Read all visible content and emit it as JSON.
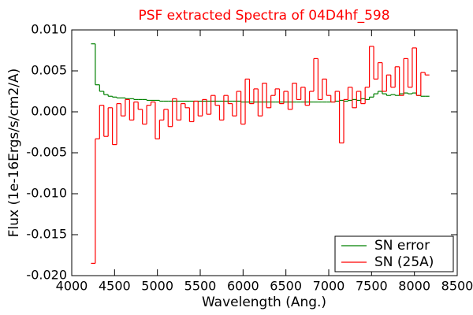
{
  "chart_data": {
    "type": "step",
    "title": "PSF extracted Spectra of 04D4hf_598",
    "xlabel": "Wavelength (Ang.)",
    "ylabel": "Flux (1e-16Ergs/s/cm2/A)",
    "xlim": [
      4000,
      8500
    ],
    "ylim": [
      -0.02,
      0.01
    ],
    "xticks": [
      4000,
      4500,
      5000,
      5500,
      6000,
      6500,
      7000,
      7500,
      8000,
      8500
    ],
    "yticks": [
      {
        "value": -0.02,
        "label": "-0.020"
      },
      -0.015,
      {
        "value": -0.01,
        "label": "-0.010"
      },
      -0.005,
      {
        "value": 0,
        "label": "0.000"
      },
      0.005,
      {
        "value": 0.01,
        "label": "0.010"
      }
    ],
    "legend": "lower right",
    "x": [
      4250,
      4300,
      4350,
      4400,
      4450,
      4500,
      4550,
      4600,
      4650,
      4700,
      4750,
      4800,
      4850,
      4900,
      4950,
      5000,
      5050,
      5100,
      5150,
      5200,
      5250,
      5300,
      5350,
      5400,
      5450,
      5500,
      5550,
      5600,
      5650,
      5700,
      5750,
      5800,
      5850,
      5900,
      5950,
      6000,
      6050,
      6100,
      6150,
      6200,
      6250,
      6300,
      6350,
      6400,
      6450,
      6500,
      6550,
      6600,
      6650,
      6700,
      6750,
      6800,
      6850,
      6900,
      6950,
      7000,
      7050,
      7100,
      7150,
      7200,
      7250,
      7300,
      7350,
      7400,
      7450,
      7500,
      7550,
      7600,
      7650,
      7700,
      7750,
      7800,
      7850,
      7900,
      7950,
      8000,
      8050,
      8100,
      8150
    ],
    "series": [
      {
        "name": "SN error",
        "color": "#008000",
        "values": [
          0.0083,
          0.0033,
          0.0025,
          0.0021,
          0.0019,
          0.0018,
          0.0017,
          0.0017,
          0.0016,
          0.0016,
          0.0015,
          0.0015,
          0.0015,
          0.0014,
          0.0014,
          0.0014,
          0.0013,
          0.0013,
          0.0013,
          0.0013,
          0.0013,
          0.0013,
          0.0013,
          0.0013,
          0.0013,
          0.0013,
          0.0013,
          0.0013,
          0.0013,
          0.0013,
          0.0013,
          0.0013,
          0.0013,
          0.0013,
          0.0013,
          0.0012,
          0.0012,
          0.0012,
          0.0012,
          0.0012,
          0.0012,
          0.0012,
          0.0012,
          0.0012,
          0.0012,
          0.0012,
          0.0012,
          0.0012,
          0.0012,
          0.0012,
          0.0012,
          0.0012,
          0.0012,
          0.0012,
          0.0012,
          0.0012,
          0.0012,
          0.0013,
          0.0014,
          0.0013,
          0.0014,
          0.0015,
          0.0014,
          0.0016,
          0.0015,
          0.0018,
          0.0022,
          0.0025,
          0.0022,
          0.002,
          0.0021,
          0.002,
          0.0022,
          0.0023,
          0.0022,
          0.0023,
          0.002,
          0.0019,
          0.0019
        ]
      },
      {
        "name": "SN (25A)",
        "color": "#ff0000",
        "values": [
          -0.0185,
          -0.0033,
          0.0008,
          -0.003,
          0.0005,
          -0.004,
          0.001,
          -0.0005,
          0.0015,
          -0.001,
          0.0012,
          0.0003,
          -0.0015,
          0.0008,
          0.0012,
          -0.0033,
          -0.001,
          0.0003,
          -0.0018,
          0.0016,
          -0.001,
          0.001,
          0.0005,
          -0.0012,
          0.0013,
          -0.0005,
          0.0015,
          -0.0003,
          0.002,
          0.0008,
          -0.001,
          0.002,
          0.001,
          -0.0005,
          0.0025,
          -0.0015,
          0.004,
          0.001,
          0.0028,
          -0.0005,
          0.0035,
          0.0005,
          0.002,
          0.0028,
          0.001,
          0.0025,
          0.0003,
          0.0035,
          0.0015,
          0.003,
          0.0008,
          0.0025,
          0.0065,
          0.0015,
          0.004,
          0.002,
          0.0012,
          0.0025,
          -0.0038,
          0.0015,
          0.003,
          0.0005,
          0.0025,
          0.001,
          0.003,
          0.008,
          0.004,
          0.006,
          0.0025,
          0.0045,
          0.003,
          0.0055,
          0.002,
          0.0065,
          0.003,
          0.0078,
          0.002,
          0.0048,
          0.0045
        ]
      }
    ]
  }
}
